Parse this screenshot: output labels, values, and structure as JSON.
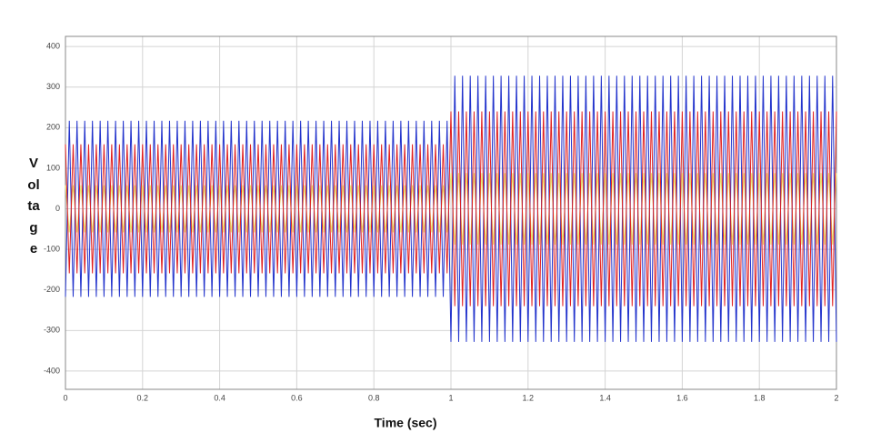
{
  "chart_data": {
    "type": "line",
    "x_label": "Time (sec)",
    "y_label": "Voltage",
    "xlim": [
      0,
      2
    ],
    "ylim": [
      -445,
      425
    ],
    "xticks": [
      0,
      0.2,
      0.4,
      0.6,
      0.8,
      1,
      1.2,
      1.4,
      1.6,
      1.8,
      2
    ],
    "yticks": [
      -400,
      -300,
      -200,
      -100,
      0,
      100,
      200,
      300,
      400
    ],
    "grid": true,
    "x": [
      0,
      0.01,
      0.02,
      0.03,
      0.04,
      0.05,
      0.06,
      0.07,
      0.08,
      0.09,
      0.1,
      0.11,
      0.12,
      0.13,
      0.14,
      0.15,
      0.16,
      0.17,
      0.18,
      0.19,
      0.2,
      0.21,
      0.22,
      0.23,
      0.24,
      0.25,
      0.26,
      0.27,
      0.28,
      0.29,
      0.3,
      0.31,
      0.32,
      0.33,
      0.34,
      0.35,
      0.36,
      0.37,
      0.38,
      0.39,
      0.4,
      0.41,
      0.42,
      0.43,
      0.44,
      0.45,
      0.46,
      0.47,
      0.48,
      0.49,
      0.5,
      0.51,
      0.52,
      0.53,
      0.54,
      0.55,
      0.56,
      0.57,
      0.58,
      0.59,
      0.6,
      0.61,
      0.62,
      0.63,
      0.64,
      0.65,
      0.66,
      0.67,
      0.68,
      0.69,
      0.7,
      0.71,
      0.72,
      0.73,
      0.74,
      0.75,
      0.76,
      0.77,
      0.78,
      0.79,
      0.8,
      0.81,
      0.82,
      0.83,
      0.84,
      0.85,
      0.86,
      0.87,
      0.88,
      0.89,
      0.9,
      0.91,
      0.92,
      0.93,
      0.94,
      0.95,
      0.96,
      0.97,
      0.98,
      0.99,
      1,
      1.01,
      1.02,
      1.03,
      1.04,
      1.05,
      1.06,
      1.07,
      1.08,
      1.09,
      1.1,
      1.11,
      1.12,
      1.13,
      1.14,
      1.15,
      1.16,
      1.17,
      1.18,
      1.19,
      1.2,
      1.21,
      1.22,
      1.23,
      1.24,
      1.25,
      1.26,
      1.27,
      1.28,
      1.29,
      1.3,
      1.31,
      1.32,
      1.33,
      1.34,
      1.35,
      1.36,
      1.37,
      1.38,
      1.39,
      1.4,
      1.41,
      1.42,
      1.43,
      1.44,
      1.45,
      1.46,
      1.47,
      1.48,
      1.49,
      1.5,
      1.51,
      1.52,
      1.53,
      1.54,
      1.55,
      1.56,
      1.57,
      1.58,
      1.59,
      1.6,
      1.61,
      1.62,
      1.63,
      1.64,
      1.65,
      1.66,
      1.67,
      1.68,
      1.69,
      1.7,
      1.71,
      1.72,
      1.73,
      1.74,
      1.75,
      1.76,
      1.77,
      1.78,
      1.79,
      1.8,
      1.81,
      1.82,
      1.83,
      1.84,
      1.85,
      1.86,
      1.87,
      1.88,
      1.89,
      1.9,
      1.91,
      1.92,
      1.93,
      1.94,
      1.95,
      1.96,
      1.97,
      1.98,
      1.99,
      2
    ],
    "series": [
      {
        "color": "#e6e26a",
        "values": [
          58,
          -58,
          58,
          -58,
          58,
          -58,
          58,
          -58,
          58,
          -58,
          58,
          -58,
          58,
          -58,
          58,
          -58,
          58,
          -58,
          58,
          -58,
          58,
          -58,
          58,
          -58,
          58,
          -58,
          58,
          -58,
          58,
          -58,
          58,
          -58,
          58,
          -58,
          58,
          -58,
          58,
          -58,
          58,
          -58,
          58,
          -58,
          58,
          -58,
          58,
          -58,
          58,
          -58,
          58,
          -58,
          58,
          -58,
          58,
          -58,
          58,
          -58,
          58,
          -58,
          58,
          -58,
          58,
          -58,
          58,
          -58,
          58,
          -58,
          58,
          -58,
          58,
          -58,
          58,
          -58,
          58,
          -58,
          58,
          -58,
          58,
          -58,
          58,
          -58,
          58,
          -58,
          58,
          -58,
          58,
          -58,
          58,
          -58,
          58,
          -58,
          58,
          -58,
          58,
          -58,
          58,
          -58,
          58,
          -58,
          58,
          -58,
          88,
          -88,
          88,
          -88,
          88,
          -88,
          88,
          -88,
          88,
          -88,
          88,
          -88,
          88,
          -88,
          88,
          -88,
          88,
          -88,
          88,
          -88,
          88,
          -88,
          88,
          -88,
          88,
          -88,
          88,
          -88,
          88,
          -88,
          88,
          -88,
          88,
          -88,
          88,
          -88,
          88,
          -88,
          88,
          -88,
          88,
          -88,
          88,
          -88,
          88,
          -88,
          88,
          -88,
          88,
          -88,
          88,
          -88,
          88,
          -88,
          88,
          -88,
          88,
          -88,
          88,
          -88,
          88,
          -88,
          88,
          -88,
          88,
          -88,
          88,
          -88,
          88,
          -88,
          88,
          -88,
          88,
          -88,
          88,
          -88,
          88,
          -88,
          88,
          -88,
          88,
          -88,
          88,
          -88,
          88,
          -88,
          88,
          -88,
          88,
          -88,
          88,
          -88,
          88,
          -88,
          88,
          -88,
          88,
          -88,
          88,
          -88,
          88
        ]
      },
      {
        "color": "#2233cc",
        "values": [
          -217,
          217,
          -217,
          217,
          -217,
          217,
          -217,
          217,
          -217,
          217,
          -217,
          217,
          -217,
          217,
          -217,
          217,
          -217,
          217,
          -217,
          217,
          -217,
          217,
          -217,
          217,
          -217,
          217,
          -217,
          217,
          -217,
          217,
          -217,
          217,
          -217,
          217,
          -217,
          217,
          -217,
          217,
          -217,
          217,
          -217,
          217,
          -217,
          217,
          -217,
          217,
          -217,
          217,
          -217,
          217,
          -217,
          217,
          -217,
          217,
          -217,
          217,
          -217,
          217,
          -217,
          217,
          -217,
          217,
          -217,
          217,
          -217,
          217,
          -217,
          217,
          -217,
          217,
          -217,
          217,
          -217,
          217,
          -217,
          217,
          -217,
          217,
          -217,
          217,
          -217,
          217,
          -217,
          217,
          -217,
          217,
          -217,
          217,
          -217,
          217,
          -217,
          217,
          -217,
          217,
          -217,
          217,
          -217,
          217,
          -217,
          217,
          -328,
          328,
          -328,
          328,
          -328,
          328,
          -328,
          328,
          -328,
          328,
          -328,
          328,
          -328,
          328,
          -328,
          328,
          -328,
          328,
          -328,
          328,
          -328,
          328,
          -328,
          328,
          -328,
          328,
          -328,
          328,
          -328,
          328,
          -328,
          328,
          -328,
          328,
          -328,
          328,
          -328,
          328,
          -328,
          328,
          -328,
          328,
          -328,
          328,
          -328,
          328,
          -328,
          328,
          -328,
          328,
          -328,
          328,
          -328,
          328,
          -328,
          328,
          -328,
          328,
          -328,
          328,
          -328,
          328,
          -328,
          328,
          -328,
          328,
          -328,
          328,
          -328,
          328,
          -328,
          328,
          -328,
          328,
          -328,
          328,
          -328,
          328,
          -328,
          328,
          -328,
          328,
          -328,
          328,
          -328,
          328,
          -328,
          328,
          -328,
          328,
          -328,
          328,
          -328,
          328,
          -328,
          328,
          -328,
          328,
          -328,
          328,
          -328
        ]
      },
      {
        "color": "#e02020",
        "values": [
          159,
          -159,
          159,
          -159,
          159,
          -159,
          159,
          -159,
          159,
          -159,
          159,
          -159,
          159,
          -159,
          159,
          -159,
          159,
          -159,
          159,
          -159,
          159,
          -159,
          159,
          -159,
          159,
          -159,
          159,
          -159,
          159,
          -159,
          159,
          -159,
          159,
          -159,
          159,
          -159,
          159,
          -159,
          159,
          -159,
          159,
          -159,
          159,
          -159,
          159,
          -159,
          159,
          -159,
          159,
          -159,
          159,
          -159,
          159,
          -159,
          159,
          -159,
          159,
          -159,
          159,
          -159,
          159,
          -159,
          159,
          -159,
          159,
          -159,
          159,
          -159,
          159,
          -159,
          159,
          -159,
          159,
          -159,
          159,
          -159,
          159,
          -159,
          159,
          -159,
          159,
          -159,
          159,
          -159,
          159,
          -159,
          159,
          -159,
          159,
          -159,
          159,
          -159,
          159,
          -159,
          159,
          -159,
          159,
          -159,
          159,
          -159,
          240,
          -240,
          240,
          -240,
          240,
          -240,
          240,
          -240,
          240,
          -240,
          240,
          -240,
          240,
          -240,
          240,
          -240,
          240,
          -240,
          240,
          -240,
          240,
          -240,
          240,
          -240,
          240,
          -240,
          240,
          -240,
          240,
          -240,
          240,
          -240,
          240,
          -240,
          240,
          -240,
          240,
          -240,
          240,
          -240,
          240,
          -240,
          240,
          -240,
          240,
          -240,
          240,
          -240,
          240,
          -240,
          240,
          -240,
          240,
          -240,
          240,
          -240,
          240,
          -240,
          240,
          -240,
          240,
          -240,
          240,
          -240,
          240,
          -240,
          240,
          -240,
          240,
          -240,
          240,
          -240,
          240,
          -240,
          240,
          -240,
          240,
          -240,
          240,
          -240,
          240,
          -240,
          240,
          -240,
          240,
          -240,
          240,
          -240,
          240,
          -240,
          240,
          -240,
          240,
          -240,
          240,
          -240,
          240,
          -240,
          240,
          -240,
          240
        ]
      }
    ]
  }
}
